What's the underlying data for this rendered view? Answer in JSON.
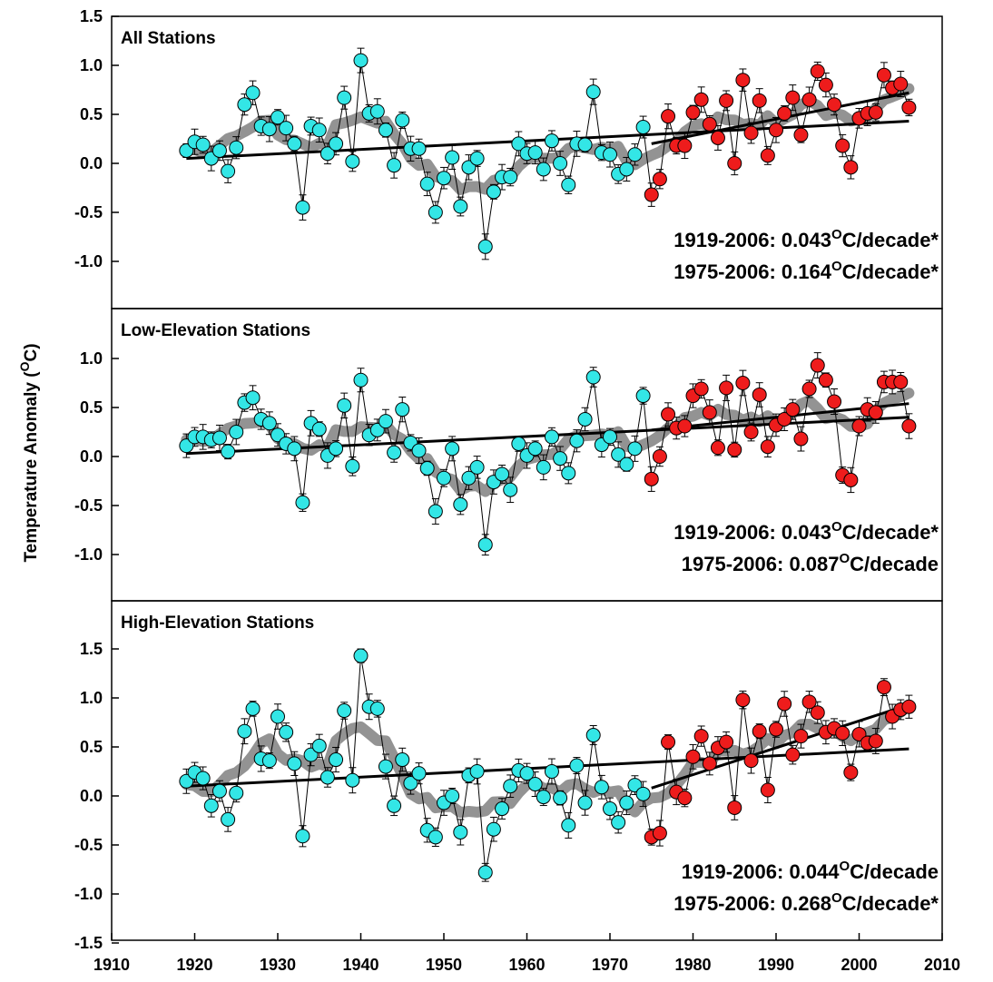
{
  "chart_data": {
    "type": "scatter",
    "ylabel": "Temperature Anomaly (",
    "ylabel_sup": "O",
    "ylabel_unit": "C)",
    "xlim": [
      1910,
      2010
    ],
    "x_ticks": [
      "1910",
      "1920",
      "1930",
      "1940",
      "1950",
      "1960",
      "1970",
      "1980",
      "1990",
      "2000",
      "2010"
    ],
    "colors": {
      "early_marker": "#33e6e6",
      "late_marker": "#ee1c1c",
      "smooth": "#808080",
      "trend": "#000000"
    },
    "split_year": 1975,
    "panels": [
      {
        "title": "All Stations",
        "ylim": [
          -1.5,
          1.5
        ],
        "y_ticks": [
          "1.5",
          "1.0",
          "0.5",
          "0.0",
          "-0.5",
          "-1.0"
        ],
        "trend_labels": [
          {
            "prefix": "1919-2006: 0.043",
            "sup": "O",
            "suffix": "C/decade*"
          },
          {
            "prefix": "1975-2006: 0.164",
            "sup": "O",
            "suffix": "C/decade*"
          }
        ],
        "trend_lines": [
          {
            "x": [
              1919,
              2006
            ],
            "y": [
              0.05,
              0.43
            ]
          },
          {
            "x": [
              1975,
              2006
            ],
            "y": [
              0.2,
              0.72
            ]
          }
        ],
        "years": [
          1919,
          1920,
          1921,
          1922,
          1923,
          1924,
          1925,
          1926,
          1927,
          1928,
          1929,
          1930,
          1931,
          1932,
          1933,
          1934,
          1935,
          1936,
          1937,
          1938,
          1939,
          1940,
          1941,
          1942,
          1943,
          1944,
          1945,
          1946,
          1947,
          1948,
          1949,
          1950,
          1951,
          1952,
          1953,
          1954,
          1955,
          1956,
          1957,
          1958,
          1959,
          1960,
          1961,
          1962,
          1963,
          1964,
          1965,
          1966,
          1967,
          1968,
          1969,
          1970,
          1971,
          1972,
          1973,
          1974,
          1975,
          1976,
          1977,
          1978,
          1979,
          1980,
          1981,
          1982,
          1983,
          1984,
          1985,
          1986,
          1987,
          1988,
          1989,
          1990,
          1991,
          1992,
          1993,
          1994,
          1995,
          1996,
          1997,
          1998,
          1999,
          2000,
          2001,
          2002,
          2003,
          2004,
          2005,
          2006
        ],
        "values": [
          0.13,
          0.22,
          0.19,
          0.05,
          0.13,
          -0.08,
          0.16,
          0.6,
          0.72,
          0.38,
          0.35,
          0.47,
          0.36,
          0.2,
          -0.45,
          0.38,
          0.34,
          0.1,
          0.2,
          0.67,
          0.02,
          1.05,
          0.51,
          0.53,
          0.34,
          -0.02,
          0.44,
          0.15,
          0.15,
          -0.21,
          -0.5,
          -0.15,
          0.06,
          -0.44,
          -0.04,
          0.05,
          -0.85,
          -0.29,
          -0.14,
          -0.14,
          0.2,
          0.1,
          0.11,
          -0.06,
          0.23,
          0.0,
          -0.22,
          0.2,
          0.19,
          0.73,
          0.11,
          0.09,
          -0.11,
          -0.06,
          0.09,
          0.37,
          -0.32,
          -0.16,
          0.48,
          0.18,
          0.18,
          0.52,
          0.65,
          0.4,
          0.26,
          0.64,
          0.0,
          0.85,
          0.31,
          0.64,
          0.08,
          0.34,
          0.51,
          0.67,
          0.29,
          0.65,
          0.94,
          0.8,
          0.6,
          0.18,
          -0.04,
          0.46,
          0.51,
          0.52,
          0.9,
          0.77,
          0.81,
          0.57
        ]
      },
      {
        "title": "Low-Elevation Stations",
        "ylim": [
          -1.5,
          1.25
        ],
        "y_ticks": [
          "1.0",
          "0.5",
          "0.0",
          "-0.5",
          "-1.0"
        ],
        "trend_labels": [
          {
            "prefix": "1919-2006: 0.043",
            "sup": "O",
            "suffix": "C/decade*"
          },
          {
            "prefix": "1975-2006: 0.087",
            "sup": "O",
            "suffix": "C/decade"
          }
        ],
        "trend_lines": [
          {
            "x": [
              1919,
              2006
            ],
            "y": [
              0.03,
              0.4
            ]
          },
          {
            "x": [
              1975,
              2006
            ],
            "y": [
              0.27,
              0.54
            ]
          }
        ],
        "years": [
          1919,
          1920,
          1921,
          1922,
          1923,
          1924,
          1925,
          1926,
          1927,
          1928,
          1929,
          1930,
          1931,
          1932,
          1933,
          1934,
          1935,
          1936,
          1937,
          1938,
          1939,
          1940,
          1941,
          1942,
          1943,
          1944,
          1945,
          1946,
          1947,
          1948,
          1949,
          1950,
          1951,
          1952,
          1953,
          1954,
          1955,
          1956,
          1957,
          1958,
          1959,
          1960,
          1961,
          1962,
          1963,
          1964,
          1965,
          1966,
          1967,
          1968,
          1969,
          1970,
          1971,
          1972,
          1973,
          1974,
          1975,
          1976,
          1977,
          1978,
          1979,
          1980,
          1981,
          1982,
          1983,
          1984,
          1985,
          1986,
          1987,
          1988,
          1989,
          1990,
          1991,
          1992,
          1993,
          1994,
          1995,
          1996,
          1997,
          1998,
          1999,
          2000,
          2001,
          2002,
          2003,
          2004,
          2005,
          2006
        ],
        "values": [
          0.11,
          0.2,
          0.2,
          0.17,
          0.19,
          0.05,
          0.25,
          0.55,
          0.6,
          0.38,
          0.34,
          0.22,
          0.13,
          0.08,
          -0.47,
          0.34,
          0.28,
          0.01,
          0.08,
          0.52,
          -0.1,
          0.78,
          0.22,
          0.27,
          0.36,
          0.04,
          0.48,
          0.14,
          0.06,
          -0.12,
          -0.56,
          -0.22,
          0.08,
          -0.49,
          -0.22,
          -0.11,
          -0.9,
          -0.26,
          -0.18,
          -0.34,
          0.13,
          0.01,
          0.08,
          -0.11,
          0.2,
          -0.02,
          -0.17,
          0.16,
          0.38,
          0.81,
          0.12,
          0.2,
          0.02,
          -0.08,
          0.08,
          0.62,
          -0.23,
          0.0,
          0.43,
          0.29,
          0.31,
          0.62,
          0.69,
          0.45,
          0.09,
          0.7,
          0.07,
          0.75,
          0.25,
          0.63,
          0.1,
          0.32,
          0.38,
          0.48,
          0.18,
          0.69,
          0.93,
          0.78,
          0.56,
          -0.19,
          -0.24,
          0.31,
          0.48,
          0.45,
          0.76,
          0.76,
          0.76,
          0.31
        ]
      },
      {
        "title": "High-Elevation Stations",
        "ylim": [
          -1.5,
          1.95
        ],
        "y_ticks": [
          "1.5",
          "1.0",
          "0.5",
          "0.0",
          "-0.5",
          "-1.0",
          "-1.5"
        ],
        "trend_labels": [
          {
            "prefix": "1919-2006: 0.044",
            "sup": "O",
            "suffix": "C/decade"
          },
          {
            "prefix": "1975-2006: 0.268",
            "sup": "O",
            "suffix": "C/decade*"
          }
        ],
        "trend_lines": [
          {
            "x": [
              1919,
              2006
            ],
            "y": [
              0.1,
              0.48
            ]
          },
          {
            "x": [
              1975,
              2006
            ],
            "y": [
              0.08,
              0.93
            ]
          }
        ],
        "years": [
          1919,
          1920,
          1921,
          1922,
          1923,
          1924,
          1925,
          1926,
          1927,
          1928,
          1929,
          1930,
          1931,
          1932,
          1933,
          1934,
          1935,
          1936,
          1937,
          1938,
          1939,
          1940,
          1941,
          1942,
          1943,
          1944,
          1945,
          1946,
          1947,
          1948,
          1949,
          1950,
          1951,
          1952,
          1953,
          1954,
          1955,
          1956,
          1957,
          1958,
          1959,
          1960,
          1961,
          1962,
          1963,
          1964,
          1965,
          1966,
          1967,
          1968,
          1969,
          1970,
          1971,
          1972,
          1973,
          1974,
          1975,
          1976,
          1977,
          1978,
          1979,
          1980,
          1981,
          1982,
          1983,
          1984,
          1985,
          1986,
          1987,
          1988,
          1989,
          1990,
          1991,
          1992,
          1993,
          1994,
          1995,
          1996,
          1997,
          1998,
          1999,
          2000,
          2001,
          2002,
          2003,
          2004,
          2005,
          2006
        ],
        "values": [
          0.15,
          0.24,
          0.18,
          -0.1,
          0.05,
          -0.24,
          0.03,
          0.66,
          0.89,
          0.38,
          0.36,
          0.81,
          0.65,
          0.33,
          -0.41,
          0.42,
          0.51,
          0.19,
          0.37,
          0.87,
          0.16,
          1.43,
          0.91,
          0.89,
          0.3,
          -0.1,
          0.37,
          0.13,
          0.23,
          -0.35,
          -0.42,
          -0.07,
          0.0,
          -0.37,
          0.21,
          0.25,
          -0.78,
          -0.34,
          -0.13,
          0.1,
          0.26,
          0.23,
          0.12,
          -0.01,
          0.25,
          -0.02,
          -0.3,
          0.31,
          -0.07,
          0.62,
          0.09,
          -0.13,
          -0.27,
          -0.07,
          0.11,
          0.02,
          -0.42,
          -0.38,
          0.55,
          0.04,
          -0.02,
          0.4,
          0.61,
          0.33,
          0.49,
          0.55,
          -0.12,
          0.98,
          0.36,
          0.66,
          0.06,
          0.68,
          0.94,
          0.42,
          0.61,
          0.96,
          0.85,
          0.65,
          0.69,
          0.64,
          0.24,
          0.63,
          0.54,
          0.56,
          1.11,
          0.81,
          0.88,
          0.91
        ]
      }
    ]
  }
}
